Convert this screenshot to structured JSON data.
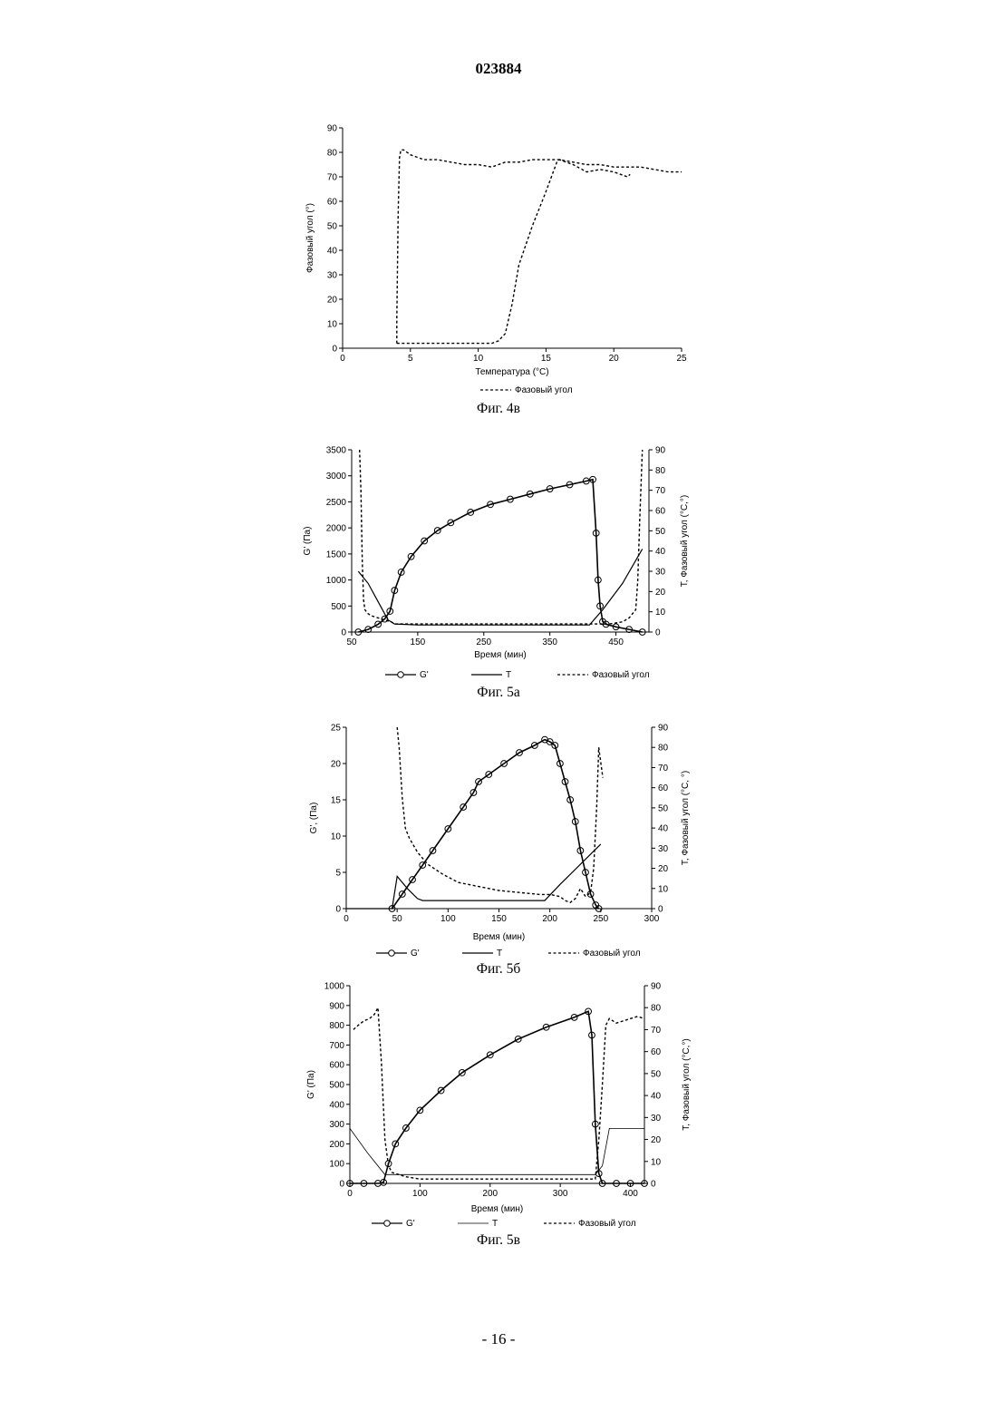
{
  "header": {
    "doc_number": "023884"
  },
  "footer": {
    "page_number": "- 16 -"
  },
  "chart_data": [
    {
      "id": "fig4v",
      "type": "line",
      "caption": "Фиг. 4в",
      "xlabel": "Температура (°C)",
      "ylabel": "Фазовый угол (°)",
      "xlim": [
        0,
        25
      ],
      "ylim": [
        0,
        90
      ],
      "xticks": [
        "0",
        "5",
        "10",
        "15",
        "20",
        "25"
      ],
      "yticks": [
        "0",
        "10",
        "20",
        "30",
        "40",
        "50",
        "60",
        "70",
        "80",
        "90"
      ],
      "legend": [
        "Фазовый угол"
      ],
      "series": [
        {
          "name": "Фазовый угол",
          "axis": "left",
          "style": "dashed",
          "x": [
            4.0,
            4.0,
            4.1,
            4.2,
            4.3,
            4.5,
            5,
            6,
            7,
            8,
            9,
            10,
            11,
            12,
            13,
            14,
            15,
            16,
            17,
            18,
            19,
            20,
            21,
            22,
            23,
            24,
            25
          ],
          "y": [
            2,
            12,
            55,
            78,
            81,
            81,
            79,
            77,
            77,
            76,
            75,
            75,
            74,
            76,
            76,
            77,
            77,
            77,
            76,
            75,
            75,
            74,
            74,
            74,
            73,
            72,
            72
          ]
        },
        {
          "name": "Фазовый угол",
          "axis": "left",
          "style": "dashed",
          "x": [
            4.0,
            5,
            6,
            7,
            8,
            9,
            10,
            11,
            11.5,
            12,
            12.5,
            13,
            14,
            15,
            15.8,
            16,
            17,
            18,
            19,
            20,
            21,
            21.2
          ],
          "y": [
            2,
            2,
            2,
            2,
            2,
            2,
            2,
            2,
            3,
            6,
            18,
            34,
            50,
            64,
            76,
            77,
            75,
            72,
            73,
            72,
            70,
            71
          ]
        }
      ]
    },
    {
      "id": "fig5a",
      "type": "line",
      "caption": "Фиг. 5а",
      "xlabel": "Время (мин)",
      "ylabel": "G' (Па)",
      "y2label": "T, Фазовый угол (°C,°)",
      "xlim": [
        50,
        500
      ],
      "ylim": [
        0,
        3500
      ],
      "y2lim": [
        0,
        90
      ],
      "xticks": [
        "50",
        "150",
        "250",
        "350",
        "450"
      ],
      "yticks": [
        "0",
        "500",
        "1000",
        "1500",
        "2000",
        "2500",
        "3000",
        "3500"
      ],
      "y2ticks": [
        "0",
        "10",
        "20",
        "30",
        "40",
        "50",
        "60",
        "70",
        "80",
        "90"
      ],
      "legend": [
        "G'",
        "T",
        "Фазовый угол"
      ],
      "series": [
        {
          "name": "G'",
          "axis": "left",
          "style": "circles",
          "x": [
            60,
            75,
            90,
            100,
            108,
            115,
            125,
            140,
            160,
            180,
            200,
            230,
            260,
            290,
            320,
            350,
            380,
            405,
            415,
            420,
            423,
            426,
            430,
            435,
            450,
            470,
            490
          ],
          "y": [
            0,
            50,
            150,
            250,
            400,
            800,
            1150,
            1450,
            1750,
            1950,
            2100,
            2300,
            2450,
            2550,
            2650,
            2750,
            2830,
            2900,
            2930,
            1900,
            1000,
            500,
            200,
            150,
            100,
            50,
            0
          ]
        },
        {
          "name": "T",
          "axis": "right",
          "style": "solid",
          "x": [
            60,
            75,
            85,
            95,
            105,
            115,
            150,
            200,
            250,
            300,
            350,
            400,
            410,
            430,
            460,
            490
          ],
          "y": [
            30,
            24,
            18,
            12,
            6,
            4,
            3.5,
            3.5,
            3.5,
            3.5,
            3.5,
            3.5,
            3.5,
            11,
            24,
            41
          ]
        },
        {
          "name": "Фазовый угол",
          "axis": "right",
          "style": "dashed",
          "x": [
            62,
            64,
            66,
            68,
            70,
            75,
            80,
            90,
            100,
            110,
            115,
            125,
            150,
            200,
            250,
            300,
            350,
            400,
            420,
            440,
            460,
            470,
            480,
            483,
            486,
            490
          ],
          "y": [
            90,
            70,
            35,
            16,
            11,
            9,
            8,
            7,
            6,
            5,
            4,
            4,
            4,
            4,
            4,
            4,
            4,
            4,
            4,
            4,
            5,
            7,
            11,
            25,
            55,
            90
          ]
        }
      ]
    },
    {
      "id": "fig5b",
      "type": "line",
      "caption": "Фиг. 5б",
      "xlabel": "Время (мин)",
      "ylabel": "G', (Па)",
      "y2label": "T, Фазовый угол (°C, °)",
      "xlim": [
        0,
        300
      ],
      "ylim": [
        0,
        25
      ],
      "y2lim": [
        0,
        90
      ],
      "xticks": [
        "0",
        "50",
        "100",
        "150",
        "200",
        "250",
        "300"
      ],
      "yticks": [
        "0",
        "5",
        "10",
        "15",
        "20",
        "25"
      ],
      "y2ticks": [
        "0",
        "10",
        "20",
        "30",
        "40",
        "50",
        "60",
        "70",
        "80",
        "90"
      ],
      "legend": [
        "G'",
        "T",
        "Фазовый угол"
      ],
      "series": [
        {
          "name": "G'",
          "axis": "left",
          "style": "circles",
          "x": [
            45,
            55,
            65,
            75,
            85,
            100,
            115,
            125,
            130,
            140,
            155,
            170,
            185,
            195,
            200,
            205,
            210,
            215,
            220,
            225,
            230,
            235,
            240,
            245,
            248
          ],
          "y": [
            0,
            2,
            4,
            6,
            8,
            11,
            14,
            16,
            17.5,
            18.5,
            20,
            21.5,
            22.5,
            23.3,
            23,
            22.5,
            20,
            17.5,
            15,
            12,
            8,
            5,
            2,
            0.5,
            0
          ]
        },
        {
          "name": "T",
          "axis": "right",
          "style": "solid",
          "x": [
            0,
            45,
            50,
            60,
            70,
            75,
            100,
            150,
            190,
            195,
            210,
            230,
            250
          ],
          "y": [
            0,
            0,
            16,
            10,
            5,
            4,
            4,
            4,
            4,
            4,
            12,
            22,
            32
          ]
        },
        {
          "name": "Фазовый угол",
          "axis": "right",
          "style": "dashed",
          "x": [
            50,
            52,
            55,
            58,
            62,
            70,
            80,
            95,
            110,
            130,
            150,
            170,
            190,
            200,
            210,
            215,
            220,
            225,
            230,
            235,
            240,
            243,
            246,
            248,
            252
          ],
          "y": [
            90,
            80,
            55,
            40,
            35,
            28,
            22,
            17,
            13,
            11,
            9,
            8,
            7,
            7,
            6,
            4,
            3,
            5,
            10,
            6,
            8,
            20,
            50,
            80,
            65
          ]
        }
      ]
    },
    {
      "id": "fig5v",
      "type": "line",
      "caption": "Фиг. 5в",
      "xlabel": "Время (мин)",
      "ylabel": "G' (Па)",
      "y2label": "T, Фазовый угол (°C,°)",
      "xlim": [
        0,
        420
      ],
      "ylim": [
        0,
        1000
      ],
      "y2lim": [
        0,
        90
      ],
      "xticks": [
        "0",
        "100",
        "200",
        "300",
        "400"
      ],
      "yticks": [
        "0",
        "100",
        "200",
        "300",
        "400",
        "500",
        "600",
        "700",
        "800",
        "900",
        "1000"
      ],
      "y2ticks": [
        "0",
        "10",
        "20",
        "30",
        "40",
        "50",
        "60",
        "70",
        "80",
        "90"
      ],
      "legend": [
        "G'",
        "T",
        "Фазовый угол"
      ],
      "series": [
        {
          "name": "G'",
          "axis": "left",
          "style": "circles",
          "x": [
            0,
            20,
            40,
            48,
            55,
            65,
            80,
            100,
            130,
            160,
            200,
            240,
            280,
            320,
            340,
            345,
            350,
            355,
            360,
            380,
            400,
            420
          ],
          "y": [
            0,
            0,
            0,
            5,
            100,
            200,
            280,
            370,
            470,
            560,
            650,
            730,
            790,
            840,
            870,
            750,
            300,
            50,
            0,
            0,
            0,
            0
          ]
        },
        {
          "name": "T",
          "axis": "right",
          "style": "thin",
          "x": [
            0,
            25,
            50,
            60,
            100,
            200,
            300,
            350,
            360,
            370,
            400,
            420
          ],
          "y": [
            25,
            14,
            4,
            4,
            4,
            4,
            4,
            4,
            8,
            25,
            25,
            25
          ]
        },
        {
          "name": "Фазовый угол",
          "axis": "right",
          "style": "dashed",
          "x": [
            5,
            12,
            20,
            28,
            35,
            40,
            45,
            50,
            55,
            60,
            80,
            100,
            150,
            200,
            250,
            300,
            340,
            350,
            355,
            360,
            365,
            370,
            380,
            390,
            400,
            410,
            420
          ],
          "y": [
            70,
            72,
            74,
            75,
            77,
            80,
            55,
            20,
            8,
            5,
            3,
            2,
            2,
            2,
            2,
            2,
            2,
            2,
            20,
            45,
            72,
            75,
            73,
            74,
            75,
            76,
            75
          ]
        }
      ]
    }
  ]
}
